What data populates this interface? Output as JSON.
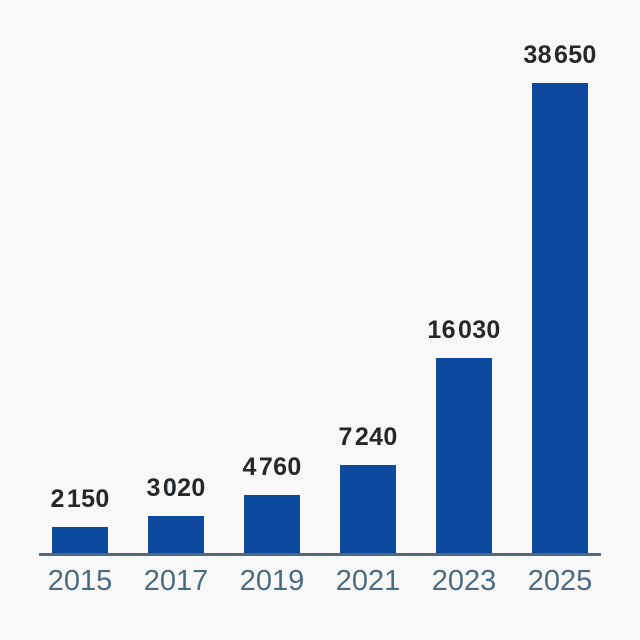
{
  "chart_data": {
    "type": "bar",
    "title": "",
    "xlabel": "",
    "ylabel": "",
    "categories": [
      "2015",
      "2017",
      "2019",
      "2021",
      "2023",
      "2025"
    ],
    "values": [
      2150,
      3020,
      4760,
      7240,
      16030,
      38650
    ],
    "value_labels": [
      "2 150",
      "3 020",
      "4 760",
      "7 240",
      "16 030",
      "38 650"
    ],
    "ylim": [
      0,
      38650
    ],
    "grid": false,
    "legend": false,
    "bar_color": "#0d4a9e",
    "value_label_color": "#25282b",
    "tick_label_color": "#4d6b80",
    "axis_line_color": "#50697c",
    "background_color": "#f8f8f8"
  }
}
